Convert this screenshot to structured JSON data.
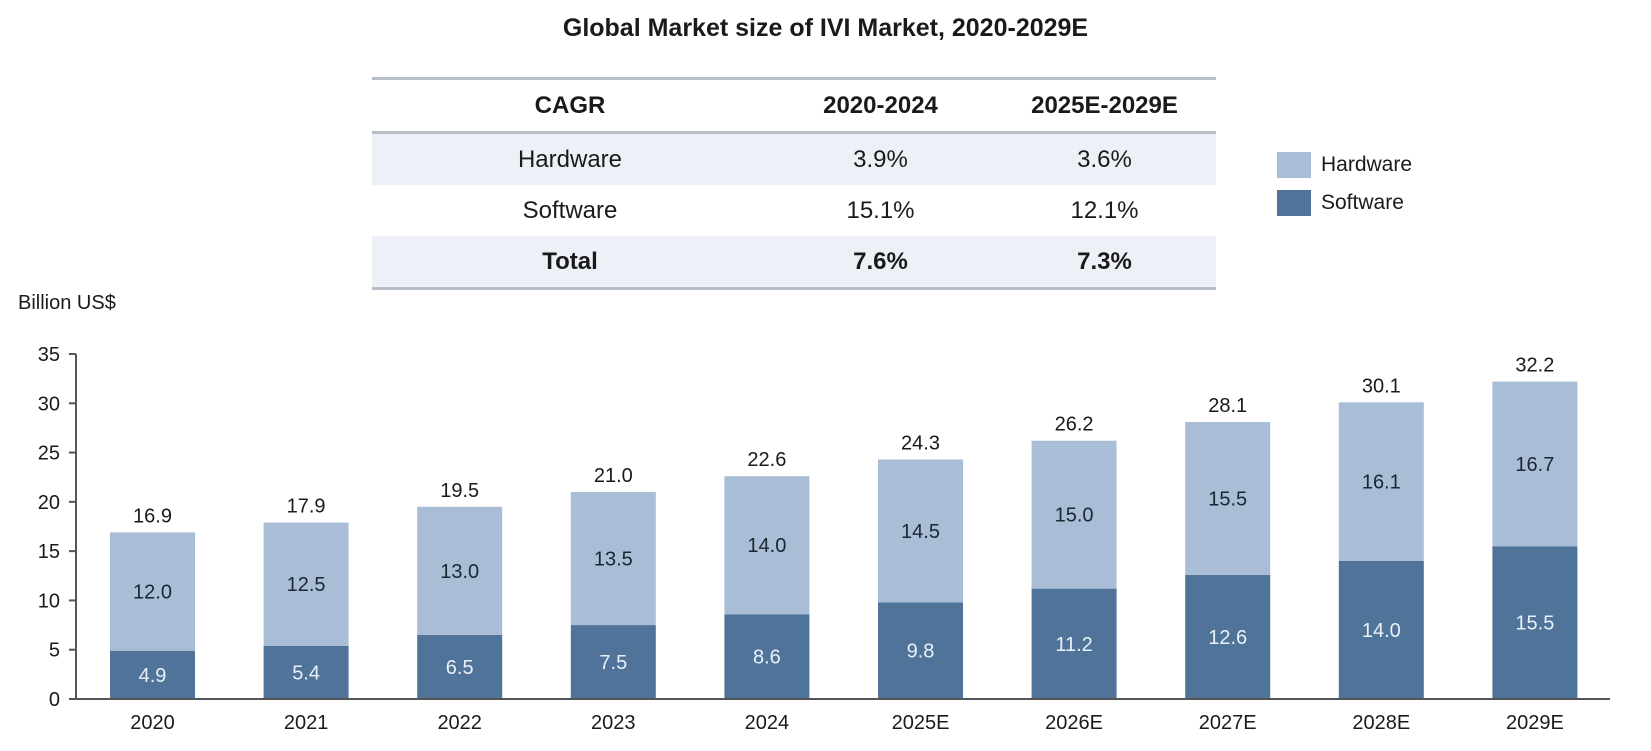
{
  "chart_data": {
    "type": "bar",
    "stacked": true,
    "title": "Global Market size of IVI Market, 2020-2029E",
    "xlabel": "",
    "ylabel": "Billion US$",
    "ylim": [
      0,
      35
    ],
    "yticks": [
      "0",
      "5",
      "10",
      "15",
      "20",
      "25",
      "30",
      "35"
    ],
    "grid": false,
    "legend_position": "top-right",
    "categories": [
      "2020",
      "2021",
      "2022",
      "2023",
      "2024",
      "2025E",
      "2026E",
      "2027E",
      "2028E",
      "2029E"
    ],
    "series": [
      {
        "name": "Software",
        "color": "#4f7399",
        "label_color": "#eaf1f8",
        "values": [
          4.9,
          5.4,
          6.5,
          7.5,
          8.6,
          9.8,
          11.2,
          12.6,
          14.0,
          15.5
        ],
        "labels": [
          "4.9",
          "5.4",
          "6.5",
          "7.5",
          "8.6",
          "9.8",
          "11.2",
          "12.6",
          "14.0",
          "15.5"
        ]
      },
      {
        "name": "Hardware",
        "color": "#a9bdd6",
        "label_color": "#1b2633",
        "values": [
          12.0,
          12.5,
          13.0,
          13.5,
          14.0,
          14.5,
          15.0,
          15.5,
          16.1,
          16.7
        ],
        "labels": [
          "12.0",
          "12.5",
          "13.0",
          "13.5",
          "14.0",
          "14.5",
          "15.0",
          "15.5",
          "16.1",
          "16.7"
        ]
      }
    ],
    "totals": [
      16.9,
      17.9,
      19.5,
      21.0,
      22.6,
      24.3,
      26.2,
      28.1,
      30.1,
      32.2
    ],
    "total_labels": [
      "16.9",
      "17.9",
      "19.5",
      "21.0",
      "22.6",
      "24.3",
      "26.2",
      "28.1",
      "30.1",
      "32.2"
    ]
  },
  "cagr_table": {
    "headers": [
      "CAGR",
      "2020-2024",
      "2025E-2029E"
    ],
    "rows": [
      [
        "Hardware",
        "3.9%",
        "3.6%"
      ],
      [
        "Software",
        "15.1%",
        "12.1%"
      ],
      [
        "Total",
        "7.6%",
        "7.3%"
      ]
    ]
  },
  "legend": [
    {
      "label": "Hardware",
      "color": "#a9bdd6"
    },
    {
      "label": "Software",
      "color": "#4f7399"
    }
  ]
}
